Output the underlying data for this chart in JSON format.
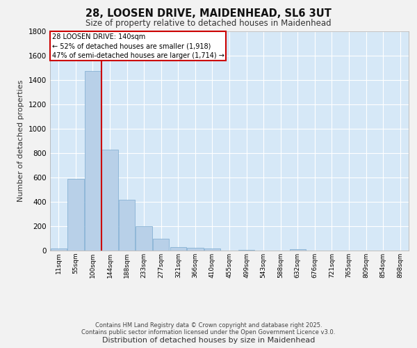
{
  "title": "28, LOOSEN DRIVE, MAIDENHEAD, SL6 3UT",
  "subtitle": "Size of property relative to detached houses in Maidenhead",
  "xlabel": "Distribution of detached houses by size in Maidenhead",
  "ylabel": "Number of detached properties",
  "categories": [
    "11sqm",
    "55sqm",
    "100sqm",
    "144sqm",
    "188sqm",
    "233sqm",
    "277sqm",
    "321sqm",
    "366sqm",
    "410sqm",
    "455sqm",
    "499sqm",
    "543sqm",
    "588sqm",
    "632sqm",
    "676sqm",
    "721sqm",
    "765sqm",
    "809sqm",
    "854sqm",
    "898sqm"
  ],
  "values": [
    15,
    590,
    1475,
    830,
    415,
    200,
    100,
    30,
    25,
    18,
    0,
    5,
    0,
    0,
    12,
    0,
    0,
    0,
    0,
    0,
    0
  ],
  "bar_color": "#b8d0e8",
  "bar_edge_color": "#7aaace",
  "background_color": "#d6e8f7",
  "grid_color": "#ffffff",
  "vline_color": "#cc0000",
  "annotation_text": "28 LOOSEN DRIVE: 140sqm\n← 52% of detached houses are smaller (1,918)\n47% of semi-detached houses are larger (1,714) →",
  "annotation_box_color": "#ffffff",
  "annotation_box_edge": "#cc0000",
  "ylim": [
    0,
    1800
  ],
  "yticks": [
    0,
    200,
    400,
    600,
    800,
    1000,
    1200,
    1400,
    1600,
    1800
  ],
  "fig_background": "#f2f2f2",
  "footer_line1": "Contains HM Land Registry data © Crown copyright and database right 2025.",
  "footer_line2": "Contains public sector information licensed under the Open Government Licence v3.0."
}
